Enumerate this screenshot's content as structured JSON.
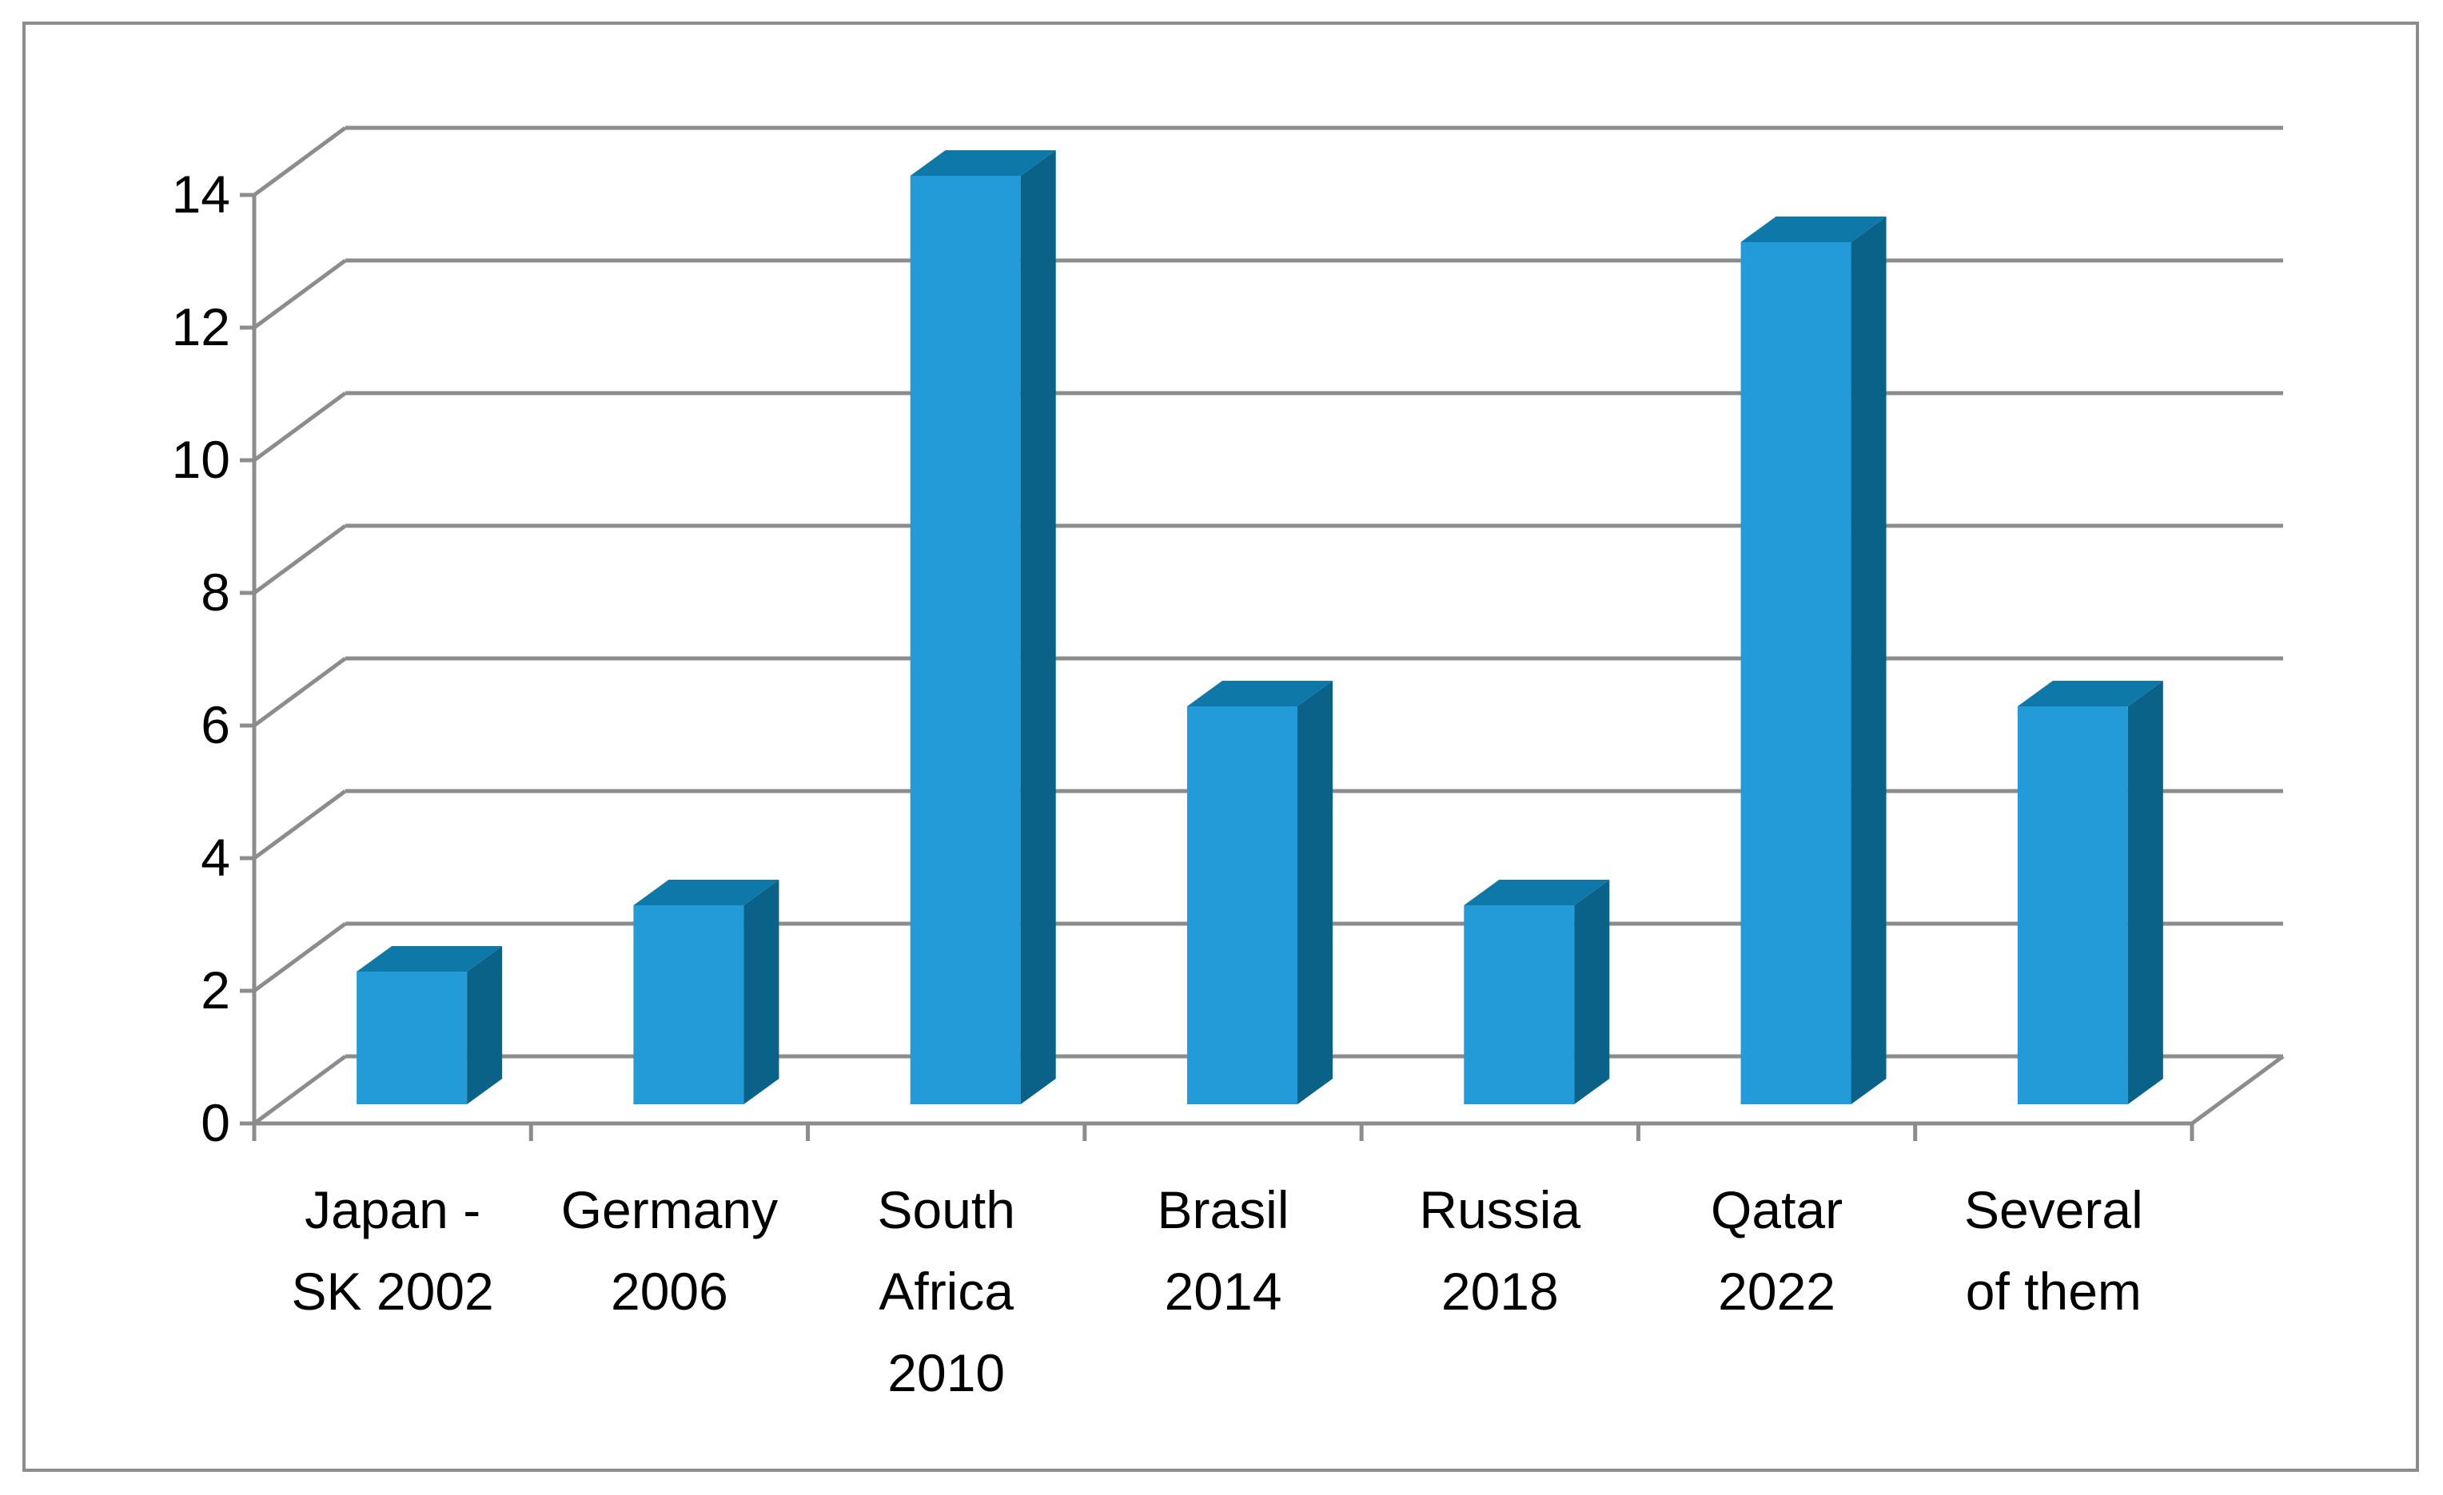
{
  "chart_data": {
    "type": "bar",
    "style": "3d-column",
    "categories": [
      [
        "Japan -",
        "SK 2002"
      ],
      [
        "Germany",
        "2006"
      ],
      [
        "South",
        "Africa",
        "2010"
      ],
      [
        "Brasil",
        "2014"
      ],
      [
        "Russia",
        "2018"
      ],
      [
        "Qatar",
        "2022"
      ],
      [
        "Several",
        "of them"
      ]
    ],
    "values": [
      2,
      3,
      14,
      6,
      3,
      13,
      6
    ],
    "ylim": [
      0,
      14
    ],
    "yticks": [
      0,
      2,
      4,
      6,
      8,
      10,
      12,
      14
    ],
    "grid": true,
    "legend": "none",
    "colors": {
      "bar_front": "#229BD8",
      "bar_side": "#0B6289",
      "bar_top": "#0E78A8",
      "grid": "#8c8c8c",
      "frame": "#8c8c8c"
    }
  }
}
